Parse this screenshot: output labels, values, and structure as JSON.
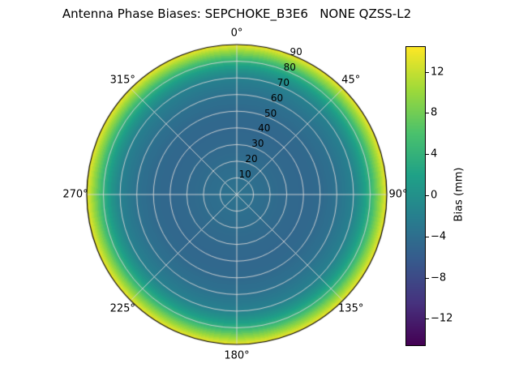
{
  "chart_data": {
    "type": "heatmap",
    "projection": "polar",
    "title": "Antenna Phase Biases: SEPCHOKE_B3E6   NONE QZSS-L2",
    "theta_zero_location": "N",
    "theta_direction": "clockwise",
    "theta_ticks_deg": [
      0,
      45,
      90,
      135,
      180,
      225,
      270,
      315
    ],
    "theta_tick_labels": [
      "0°",
      "45°",
      "90°",
      "135°",
      "180°",
      "225°",
      "270°",
      "315°"
    ],
    "radial_ticks": [
      10,
      20,
      30,
      40,
      50,
      60,
      70,
      80,
      90
    ],
    "radial_max": 90,
    "radial_label_angle_deg": 22.5,
    "radial_profile": {
      "zenith_deg": [
        0,
        10,
        20,
        30,
        40,
        50,
        60,
        70,
        75,
        80,
        85,
        90
      ],
      "bias_mm": [
        -3.5,
        -3.8,
        -4.2,
        -4.6,
        -4.8,
        -4.5,
        -3.6,
        -1.8,
        0.6,
        4.0,
        9.0,
        14.0
      ]
    },
    "colorbar": {
      "label": "Bias (mm)",
      "ticks": [
        12,
        8,
        4,
        0,
        -4,
        -8,
        -12
      ],
      "vmin": -14.5,
      "vmax": 14.5,
      "colormap": "viridis"
    },
    "grid_color": "#d7d7d7",
    "background": "#ffffff"
  }
}
